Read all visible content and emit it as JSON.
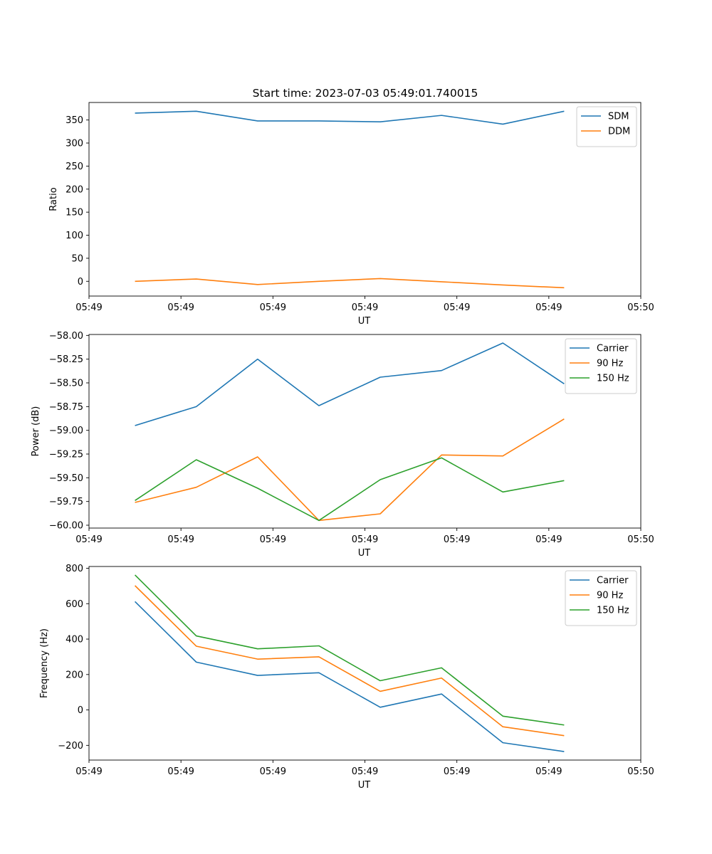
{
  "figure_title": "Start time: 2023-07-03 05:49:01.740015",
  "chart_data": [
    {
      "type": "line",
      "title": "Start time: 2023-07-03 05:49:01.740015",
      "xlabel": "UT",
      "ylabel": "Ratio",
      "x": [
        1,
        2,
        3,
        4,
        5,
        6,
        7,
        8
      ],
      "xlim": [
        0.25,
        9.25
      ],
      "x_ticks": [
        0.25,
        1.75,
        3.25,
        4.75,
        6.25,
        7.75,
        9.25
      ],
      "x_tick_labels": [
        "05:49",
        "05:49",
        "05:49",
        "05:49",
        "05:49",
        "05:49",
        "05:50"
      ],
      "ylim": [
        -32,
        388
      ],
      "y_ticks": [
        0,
        50,
        100,
        150,
        200,
        250,
        300,
        350
      ],
      "y_tick_labels": [
        "0",
        "50",
        "100",
        "150",
        "200",
        "250",
        "300",
        "350"
      ],
      "legend_position": "top-right",
      "series": [
        {
          "name": "SDM",
          "color": "#1f77b4",
          "values": [
            365,
            369,
            348,
            348,
            346,
            360,
            341,
            369
          ]
        },
        {
          "name": "DDM",
          "color": "#ff7f0e",
          "values": [
            0,
            5,
            -7,
            0,
            6,
            -1,
            -8,
            -14
          ]
        }
      ]
    },
    {
      "type": "line",
      "title": "",
      "xlabel": "UT",
      "ylabel": "Power (dB)",
      "x": [
        1,
        2,
        3,
        4,
        5,
        6,
        7,
        8
      ],
      "xlim": [
        0.25,
        9.25
      ],
      "x_ticks": [
        0.25,
        1.75,
        3.25,
        4.75,
        6.25,
        7.75,
        9.25
      ],
      "x_tick_labels": [
        "05:49",
        "05:49",
        "05:49",
        "05:49",
        "05:49",
        "05:49",
        "05:50"
      ],
      "ylim": [
        -60.03,
        -57.99
      ],
      "y_ticks": [
        -60.0,
        -59.75,
        -59.5,
        -59.25,
        -59.0,
        -58.75,
        -58.5,
        -58.25,
        -58.0
      ],
      "y_tick_labels": [
        "−60.00",
        "−59.75",
        "−59.50",
        "−59.25",
        "−59.00",
        "−58.75",
        "−58.50",
        "−58.25",
        "−58.00"
      ],
      "legend_position": "top-right",
      "series": [
        {
          "name": "Carrier",
          "color": "#1f77b4",
          "values": [
            -58.95,
            -58.75,
            -58.25,
            -58.74,
            -58.44,
            -58.37,
            -58.08,
            -58.51
          ]
        },
        {
          "name": "90 Hz",
          "color": "#ff7f0e",
          "values": [
            -59.76,
            -59.6,
            -59.28,
            -59.95,
            -59.88,
            -59.26,
            -59.27,
            -58.88
          ]
        },
        {
          "name": "150 Hz",
          "color": "#2ca02c",
          "values": [
            -59.74,
            -59.31,
            -59.61,
            -59.95,
            -59.52,
            -59.29,
            -59.65,
            -59.53
          ]
        }
      ]
    },
    {
      "type": "line",
      "title": "",
      "xlabel": "UT",
      "ylabel": "Frequency (Hz)",
      "x": [
        1,
        2,
        3,
        4,
        5,
        6,
        7,
        8
      ],
      "xlim": [
        0.25,
        9.25
      ],
      "x_ticks": [
        0.25,
        1.75,
        3.25,
        4.75,
        6.25,
        7.75,
        9.25
      ],
      "x_tick_labels": [
        "05:49",
        "05:49",
        "05:49",
        "05:49",
        "05:49",
        "05:49",
        "05:50"
      ],
      "ylim": [
        -283,
        810
      ],
      "y_ticks": [
        -200,
        0,
        200,
        400,
        600,
        800
      ],
      "y_tick_labels": [
        "−200",
        "0",
        "200",
        "400",
        "600",
        "800"
      ],
      "legend_position": "top-right",
      "series": [
        {
          "name": "Carrier",
          "color": "#1f77b4",
          "values": [
            612,
            270,
            195,
            210,
            15,
            90,
            -185,
            -235
          ]
        },
        {
          "name": "90 Hz",
          "color": "#ff7f0e",
          "values": [
            702,
            360,
            287,
            300,
            105,
            180,
            -95,
            -145
          ]
        },
        {
          "name": "150 Hz",
          "color": "#2ca02c",
          "values": [
            762,
            418,
            345,
            362,
            165,
            238,
            -35,
            -85
          ]
        }
      ]
    }
  ]
}
